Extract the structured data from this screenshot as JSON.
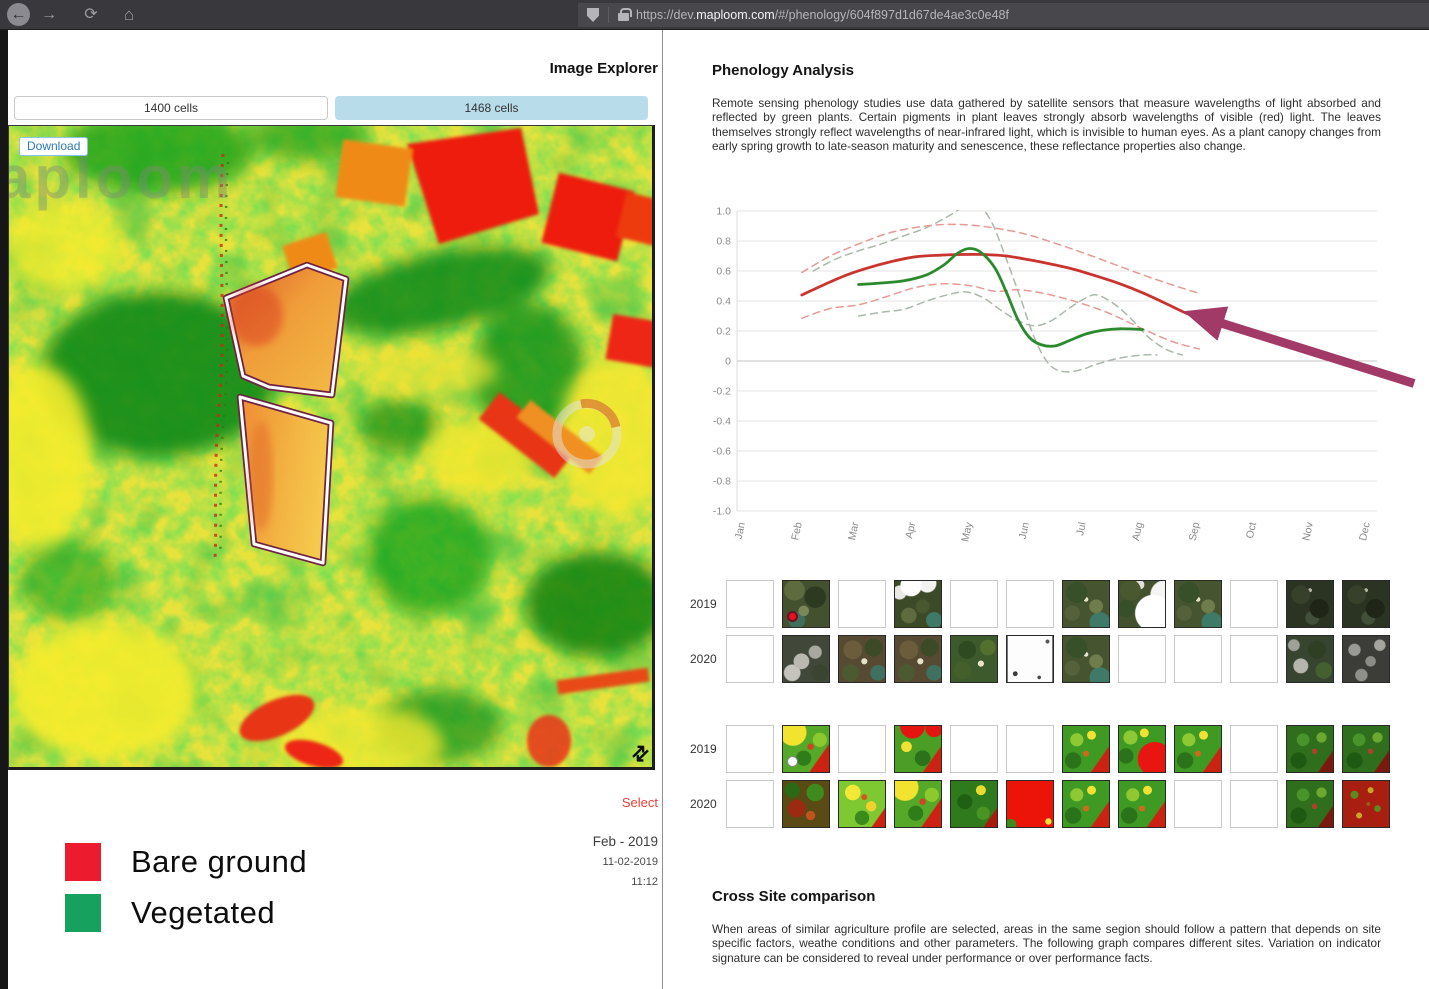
{
  "browser": {
    "back_glyph": "←",
    "forward_glyph": "→",
    "reload_glyph": "⟳",
    "home_glyph": "⌂",
    "url_prefix": "https://dev.",
    "url_domain": "maploom.com",
    "url_path": "/#/phenology/604f897d1d67de4ae3c0e48f"
  },
  "left_panel": {
    "title": "Image Explorer",
    "buttons": [
      {
        "label": "1400 cells",
        "active": false
      },
      {
        "label": "1468 cells",
        "active": true
      }
    ],
    "download_label": "Download",
    "map_watermark": "aploom",
    "corner_icon_glyph": "⇄",
    "select_label": "Select",
    "date_month": "Feb - 2019",
    "date_full": "11-02-2019",
    "date_time": "11:12",
    "legend": [
      {
        "label": "Bare ground",
        "color": "#ec1c2e"
      },
      {
        "label": "Vegetated",
        "color": "#17a15e"
      }
    ]
  },
  "right_panel": {
    "title": "Phenology Analysis",
    "intro": "Remote sensing phenology studies use data gathered by satellite sensors that measure wavelengths of light absorbed and reflected by green plants. Certain pigments in plant leaves strongly absorb wavelengths of visible (red) light. The leaves themselves strongly reflect wavelengths of near-infrared light, which is invisible to human eyes. As a plant canopy changes from early spring growth to late-season maturity and senescence, these reflectance properties also change.",
    "cross_title": "Cross Site comparison",
    "cross_text": "When areas of similar agriculture profile are selected, areas in the same segion should follow a pattern that depends on site specific factors, weathe conditions and other parameters. The following graph compares different sites. Variation on indicator signature can be considered to reveal under performance or over performance facts."
  },
  "chart_data": {
    "type": "line",
    "x_ticks": [
      "Jan",
      "Feb",
      "Mar",
      "Apr",
      "May",
      "Jun",
      "Jul",
      "Aug",
      "Sep",
      "Oct",
      "Nov",
      "Dec"
    ],
    "y_ticks": [
      1.0,
      0.8,
      0.6,
      0.4,
      0.2,
      0,
      -0.2,
      -0.4,
      -0.6,
      -0.8,
      -1.0
    ],
    "ylim": [
      -1.0,
      1.0
    ],
    "grid": true,
    "legend_position": "none",
    "series": [
      {
        "name": "green-band-upper",
        "style": "dashed",
        "color": "#a9baa9",
        "points": [
          [
            1.2,
            0.6
          ],
          [
            1.6,
            0.68
          ],
          [
            2,
            0.735
          ],
          [
            2.4,
            0.78
          ],
          [
            2.8,
            0.835
          ],
          [
            3.2,
            0.89
          ],
          [
            3.6,
            0.97
          ],
          [
            3.9,
            1.04
          ],
          [
            4.1,
            1.05
          ],
          [
            4.35,
            0.92
          ],
          [
            4.6,
            0.68
          ],
          [
            4.85,
            0.42
          ],
          [
            5.1,
            0.15
          ],
          [
            5.35,
            -0.02
          ],
          [
            5.6,
            -0.07
          ],
          [
            5.9,
            -0.06
          ],
          [
            6.2,
            -0.02
          ],
          [
            6.6,
            0.02
          ],
          [
            7,
            0.04
          ],
          [
            7.25,
            0.04
          ]
        ]
      },
      {
        "name": "green-band-lower",
        "style": "dashed",
        "color": "#a9baa9",
        "points": [
          [
            2,
            0.3
          ],
          [
            2.4,
            0.325
          ],
          [
            2.8,
            0.345
          ],
          [
            3.2,
            0.4
          ],
          [
            3.6,
            0.445
          ],
          [
            3.9,
            0.46
          ],
          [
            4.2,
            0.42
          ],
          [
            4.5,
            0.34
          ],
          [
            4.8,
            0.27
          ],
          [
            5.1,
            0.235
          ],
          [
            5.4,
            0.27
          ],
          [
            5.7,
            0.35
          ],
          [
            6,
            0.42
          ],
          [
            6.2,
            0.44
          ],
          [
            6.5,
            0.38
          ],
          [
            6.8,
            0.28
          ],
          [
            7.1,
            0.16
          ],
          [
            7.4,
            0.08
          ],
          [
            7.7,
            0.04
          ]
        ]
      },
      {
        "name": "red-band-upper",
        "style": "dashed",
        "color": "#e59a94",
        "points": [
          [
            1,
            0.59
          ],
          [
            1.5,
            0.7
          ],
          [
            2,
            0.78
          ],
          [
            2.5,
            0.85
          ],
          [
            3,
            0.89
          ],
          [
            3.5,
            0.91
          ],
          [
            4,
            0.905
          ],
          [
            4.5,
            0.88
          ],
          [
            5,
            0.84
          ],
          [
            5.5,
            0.78
          ],
          [
            6,
            0.715
          ],
          [
            6.5,
            0.645
          ],
          [
            7,
            0.575
          ],
          [
            7.5,
            0.51
          ],
          [
            8,
            0.45
          ]
        ]
      },
      {
        "name": "red-band-lower",
        "style": "dashed",
        "color": "#e59a94",
        "points": [
          [
            1,
            0.285
          ],
          [
            1.5,
            0.35
          ],
          [
            2,
            0.375
          ],
          [
            2.5,
            0.43
          ],
          [
            3,
            0.49
          ],
          [
            3.5,
            0.515
          ],
          [
            4,
            0.5
          ],
          [
            4.4,
            0.465
          ],
          [
            4.8,
            0.475
          ],
          [
            5.2,
            0.455
          ],
          [
            5.6,
            0.42
          ],
          [
            6,
            0.375
          ],
          [
            6.4,
            0.32
          ],
          [
            6.8,
            0.25
          ],
          [
            7.2,
            0.18
          ],
          [
            7.6,
            0.12
          ],
          [
            8,
            0.08
          ]
        ]
      },
      {
        "name": "red-mean",
        "style": "solid",
        "color": "#c9342e",
        "points": [
          [
            1,
            0.44
          ],
          [
            1.4,
            0.51
          ],
          [
            1.8,
            0.575
          ],
          [
            2.2,
            0.625
          ],
          [
            2.6,
            0.665
          ],
          [
            3,
            0.695
          ],
          [
            3.4,
            0.705
          ],
          [
            3.8,
            0.71
          ],
          [
            4.2,
            0.71
          ],
          [
            4.6,
            0.7
          ],
          [
            5,
            0.675
          ],
          [
            5.4,
            0.645
          ],
          [
            5.8,
            0.61
          ],
          [
            6.2,
            0.565
          ],
          [
            6.6,
            0.515
          ],
          [
            7,
            0.455
          ],
          [
            7.4,
            0.385
          ],
          [
            7.7,
            0.33
          ],
          [
            7.95,
            0.29
          ]
        ]
      },
      {
        "name": "green-mean",
        "style": "solid",
        "color": "#2c8a2e",
        "points": [
          [
            2,
            0.51
          ],
          [
            2.4,
            0.52
          ],
          [
            2.8,
            0.535
          ],
          [
            3.2,
            0.575
          ],
          [
            3.5,
            0.64
          ],
          [
            3.75,
            0.72
          ],
          [
            3.95,
            0.75
          ],
          [
            4.15,
            0.725
          ],
          [
            4.4,
            0.62
          ],
          [
            4.6,
            0.46
          ],
          [
            4.8,
            0.28
          ],
          [
            5,
            0.16
          ],
          [
            5.2,
            0.11
          ],
          [
            5.45,
            0.1
          ],
          [
            5.7,
            0.135
          ],
          [
            6,
            0.18
          ],
          [
            6.3,
            0.205
          ],
          [
            6.6,
            0.215
          ],
          [
            7,
            0.21
          ]
        ]
      }
    ],
    "annotation_arrow": {
      "tip_month": 7.9,
      "tip_value": 0.31,
      "tail_month": 11.78,
      "tail_value": -0.15,
      "color": "#a23a68"
    }
  },
  "thumbnails": {
    "groups": [
      {
        "id": "sat",
        "rows": [
          {
            "year": "2019",
            "cells": [
              "empty",
              "sat-a:red-dot",
              "empty",
              "sat-cloud",
              "empty",
              "empty",
              "sat-b",
              "sat-bigcloud",
              "sat-b",
              "empty",
              "sat-dark",
              "sat-dark"
            ]
          },
          {
            "year": "2020",
            "cells": [
              "empty",
              "cloud-gray",
              "sat-c",
              "sat-c",
              "sat-green",
              "white-specks",
              "sat-b",
              "empty",
              "empty",
              "empty",
              "sat-graygreen",
              "cloud-dark"
            ]
          }
        ]
      },
      {
        "id": "ndvi",
        "rows": [
          {
            "year": "2019",
            "cells": [
              "empty",
              "ndvi-a:white-dot",
              "empty",
              "ndvi-redtop",
              "empty",
              "empty",
              "ndvi-b",
              "ndvi-redpatch",
              "ndvi-b",
              "empty",
              "ndvi-dark",
              "ndvi-dark"
            ]
          },
          {
            "year": "2020",
            "cells": [
              "empty",
              "ndvi-darkred",
              "ndvi-bright",
              "ndvi-a",
              "ndvi-darkgreen",
              "red-solid",
              "ndvi-b",
              "ndvi-b",
              "empty",
              "empty",
              "ndvi-dark",
              "ndvi-redspeck"
            ]
          }
        ]
      }
    ]
  }
}
